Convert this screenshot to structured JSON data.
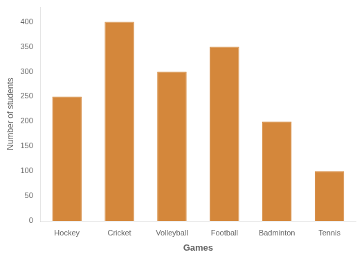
{
  "chart_data": {
    "type": "bar",
    "categories": [
      "Hockey",
      "Cricket",
      "Volleyball",
      "Football",
      "Badminton",
      "Tennis"
    ],
    "values": [
      250,
      400,
      300,
      350,
      200,
      100
    ],
    "color": "#D4873B",
    "xlabel": "Games",
    "ylabel": "Number of students",
    "ylim": [
      0,
      430
    ],
    "yticks": [
      0,
      50,
      100,
      150,
      200,
      250,
      300,
      350,
      400
    ],
    "grid": false
  }
}
